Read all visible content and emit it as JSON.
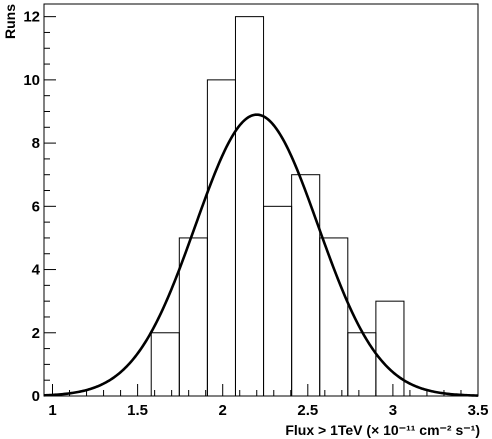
{
  "chart_data": {
    "type": "bar",
    "xlabel": "Flux > 1TeV (× 10⁻¹¹ cm⁻² s⁻¹)",
    "ylabel": "Runs",
    "xlim": [
      0.95,
      3.5
    ],
    "ylim": [
      0,
      12.4
    ],
    "x_ticks": [
      "1",
      "1.5",
      "2",
      "2.5",
      "3",
      "3.5"
    ],
    "y_ticks": [
      "0",
      "2",
      "4",
      "6",
      "8",
      "10",
      "12"
    ],
    "histogram": {
      "bin_edges": [
        1.58,
        1.745,
        1.91,
        2.075,
        2.24,
        2.405,
        2.57,
        2.735,
        2.9,
        3.065
      ],
      "counts": [
        2,
        5,
        10,
        12,
        6,
        7,
        5,
        2,
        3
      ]
    },
    "gaussian_fit": {
      "amplitude": 8.9,
      "mean": 2.2,
      "sigma": 0.36
    },
    "grid": false,
    "legend": "none"
  }
}
